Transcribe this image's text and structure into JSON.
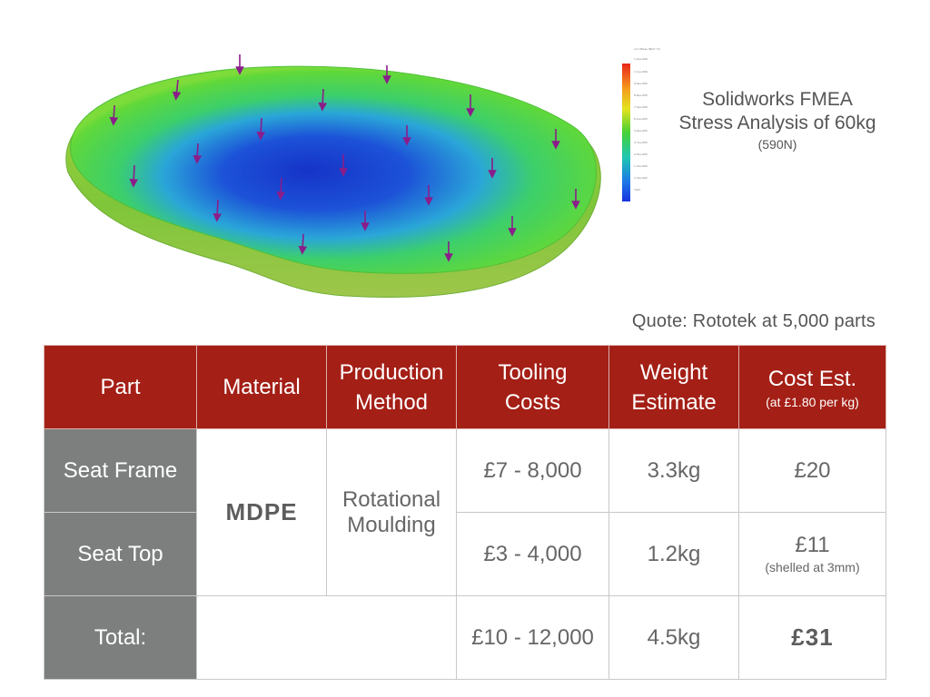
{
  "caption": {
    "line1": "Solidworks FMEA",
    "line2": "Stress Analysis of 60kg",
    "line3": "(590N)"
  },
  "quote": "Quote: Rototek at 5,000 parts",
  "legend": {
    "colors": [
      "#e8261a",
      "#f59a1d",
      "#e3e31e",
      "#46d034",
      "#1fc7b2",
      "#1e7be6",
      "#1633e0"
    ]
  },
  "table": {
    "headers": {
      "part": "Part",
      "material": "Material",
      "method_l1": "Production",
      "method_l2": "Method",
      "tooling_l1": "Tooling",
      "tooling_l2": "Costs",
      "weight_l1": "Weight",
      "weight_l2": "Estimate",
      "cost": "Cost Est.",
      "cost_sub": "(at £1.80 per kg)"
    },
    "material": "MDPE",
    "method_l1": "Rotational",
    "method_l2": "Moulding",
    "rows": [
      {
        "part": "Seat Frame",
        "tooling": "£7 - 8,000",
        "weight": "3.3kg",
        "cost": "£20",
        "cost_note": ""
      },
      {
        "part": "Seat Top",
        "tooling": "£3 - 4,000",
        "weight": "1.2kg",
        "cost": "£11",
        "cost_note": "(shelled at 3mm)"
      }
    ],
    "total": {
      "label": "Total:",
      "tooling": "£10 - 12,000",
      "weight": "4.5kg",
      "cost": "£31"
    }
  }
}
